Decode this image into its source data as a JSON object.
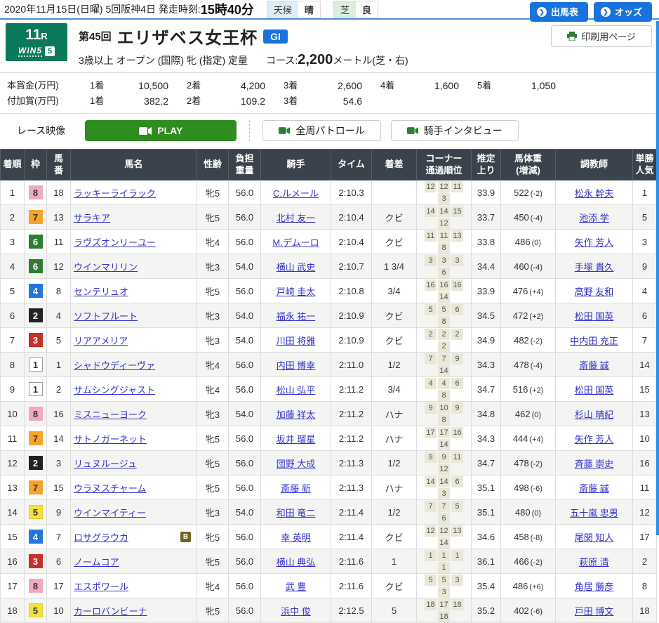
{
  "topbar": {
    "date_line": "2020年11月15日(日曜) 5回阪神4日 発走時刻:",
    "start_time": "15時40分",
    "weather_label": "天候",
    "weather_value": "晴",
    "turf_label": "芝",
    "turf_value": "良",
    "btn_racecard": "出馬表",
    "btn_odds": "オッズ",
    "btn_print": "印刷用ページ"
  },
  "race": {
    "race_no": "11",
    "race_no_suffix": "R",
    "win5_text": "WIN5",
    "win5_num": "5",
    "kai": "第45回",
    "name": "エリザベス女王杯",
    "grade": "GI",
    "conditions": "3歳以上 オープン (国際) 牝 (指定) 定量",
    "course_label": "コース:",
    "course_dist": "2,200",
    "course_suffix": "メートル(芝・右)"
  },
  "prize": {
    "main_label": "本賞金(万円)",
    "added_label": "付加賞(万円)",
    "main": [
      [
        "1着",
        "10,500"
      ],
      [
        "2着",
        "4,200"
      ],
      [
        "3着",
        "2,600"
      ],
      [
        "4着",
        "1,600"
      ],
      [
        "5着",
        "1,050"
      ]
    ],
    "added": [
      [
        "1着",
        "382.2"
      ],
      [
        "2着",
        "109.2"
      ],
      [
        "3着",
        "54.6"
      ]
    ]
  },
  "video": {
    "label": "レース映像",
    "play": "PLAY",
    "patrol": "全周パトロール",
    "interview": "騎手インタビュー"
  },
  "table": {
    "headers": [
      "着順",
      "枠",
      "馬\n番",
      "馬名",
      "性齢",
      "負担\n重量",
      "騎手",
      "タイム",
      "着差",
      "コーナー\n通過順位",
      "推定\n上り",
      "馬体重\n(増減)",
      "調教師",
      "単勝\n人気"
    ],
    "rows": [
      {
        "rank": "1",
        "frame": "8",
        "no": "18",
        "horse": "ラッキーライラック",
        "blinker": false,
        "sexage": "牝5",
        "weight": "56.0",
        "jockey": "C.ルメール",
        "time": "2:10.3",
        "margin": "",
        "corners": [
          "12",
          "12",
          "11",
          "3"
        ],
        "last3f": "33.9",
        "body": "522",
        "diff": "(-2)",
        "trainer": "松永 幹夫",
        "fav": "1"
      },
      {
        "rank": "2",
        "frame": "7",
        "no": "13",
        "horse": "サラキア",
        "blinker": false,
        "sexage": "牝5",
        "weight": "56.0",
        "jockey": "北村 友一",
        "time": "2:10.4",
        "margin": "クビ",
        "corners": [
          "14",
          "14",
          "15",
          "12"
        ],
        "last3f": "33.7",
        "body": "450",
        "diff": "(-4)",
        "trainer": "池添 学",
        "fav": "5"
      },
      {
        "rank": "3",
        "frame": "6",
        "no": "11",
        "horse": "ラヴズオンリーユー",
        "blinker": false,
        "sexage": "牝4",
        "weight": "56.0",
        "jockey": "M.デムーロ",
        "time": "2:10.4",
        "margin": "クビ",
        "corners": [
          "11",
          "11",
          "13",
          "8"
        ],
        "last3f": "33.8",
        "body": "486",
        "diff": "(0)",
        "trainer": "矢作 芳人",
        "fav": "3"
      },
      {
        "rank": "4",
        "frame": "6",
        "no": "12",
        "horse": "ウインマリリン",
        "blinker": false,
        "sexage": "牝3",
        "weight": "54.0",
        "jockey": "横山 武史",
        "time": "2:10.7",
        "margin": "1 3/4",
        "corners": [
          "3",
          "3",
          "3",
          "6"
        ],
        "last3f": "34.4",
        "body": "460",
        "diff": "(-4)",
        "trainer": "手塚 貴久",
        "fav": "9"
      },
      {
        "rank": "5",
        "frame": "4",
        "no": "8",
        "horse": "センテリュオ",
        "blinker": false,
        "sexage": "牝5",
        "weight": "56.0",
        "jockey": "戸崎 圭太",
        "time": "2:10.8",
        "margin": "3/4",
        "corners": [
          "16",
          "16",
          "16",
          "14"
        ],
        "last3f": "33.9",
        "body": "476",
        "diff": "(+4)",
        "trainer": "高野 友和",
        "fav": "4"
      },
      {
        "rank": "6",
        "frame": "2",
        "no": "4",
        "horse": "ソフトフルート",
        "blinker": false,
        "sexage": "牝3",
        "weight": "54.0",
        "jockey": "福永 祐一",
        "time": "2:10.9",
        "margin": "クビ",
        "corners": [
          "5",
          "5",
          "6",
          "8"
        ],
        "last3f": "34.5",
        "body": "472",
        "diff": "(+2)",
        "trainer": "松田 国英",
        "fav": "6"
      },
      {
        "rank": "7",
        "frame": "3",
        "no": "5",
        "horse": "リアアメリア",
        "blinker": false,
        "sexage": "牝3",
        "weight": "54.0",
        "jockey": "川田 将雅",
        "time": "2:10.9",
        "margin": "クビ",
        "corners": [
          "2",
          "2",
          "2",
          "2"
        ],
        "last3f": "34.9",
        "body": "482",
        "diff": "(-2)",
        "trainer": "中内田 充正",
        "fav": "7"
      },
      {
        "rank": "8",
        "frame": "1",
        "no": "1",
        "horse": "シャドウディーヴァ",
        "blinker": false,
        "sexage": "牝4",
        "weight": "56.0",
        "jockey": "内田 博幸",
        "time": "2:11.0",
        "margin": "1/2",
        "corners": [
          "7",
          "7",
          "9",
          "14"
        ],
        "last3f": "34.3",
        "body": "478",
        "diff": "(-4)",
        "trainer": "斎藤 誠",
        "fav": "14"
      },
      {
        "rank": "9",
        "frame": "1",
        "no": "2",
        "horse": "サムシングジャスト",
        "blinker": false,
        "sexage": "牝4",
        "weight": "56.0",
        "jockey": "松山 弘平",
        "time": "2:11.2",
        "margin": "3/4",
        "corners": [
          "4",
          "4",
          "6",
          "8"
        ],
        "last3f": "34.7",
        "body": "516",
        "diff": "(+2)",
        "trainer": "松田 国英",
        "fav": "15"
      },
      {
        "rank": "10",
        "frame": "8",
        "no": "16",
        "horse": "ミスニューヨーク",
        "blinker": false,
        "sexage": "牝3",
        "weight": "54.0",
        "jockey": "加藤 祥太",
        "time": "2:11.2",
        "margin": "ハナ",
        "corners": [
          "9",
          "10",
          "9",
          "8"
        ],
        "last3f": "34.8",
        "body": "462",
        "diff": "(0)",
        "trainer": "杉山 晴紀",
        "fav": "13"
      },
      {
        "rank": "11",
        "frame": "7",
        "no": "14",
        "horse": "サトノガーネット",
        "blinker": false,
        "sexage": "牝5",
        "weight": "56.0",
        "jockey": "坂井 瑠星",
        "time": "2:11.2",
        "margin": "ハナ",
        "corners": [
          "17",
          "17",
          "16",
          "14"
        ],
        "last3f": "34.3",
        "body": "444",
        "diff": "(+4)",
        "trainer": "矢作 芳人",
        "fav": "10"
      },
      {
        "rank": "12",
        "frame": "2",
        "no": "3",
        "horse": "リュヌルージュ",
        "blinker": false,
        "sexage": "牝5",
        "weight": "56.0",
        "jockey": "団野 大成",
        "time": "2:11.3",
        "margin": "1/2",
        "corners": [
          "9",
          "9",
          "11",
          "12"
        ],
        "last3f": "34.7",
        "body": "478",
        "diff": "(-2)",
        "trainer": "斉藤 崇史",
        "fav": "16"
      },
      {
        "rank": "13",
        "frame": "7",
        "no": "15",
        "horse": "ウラヌスチャーム",
        "blinker": false,
        "sexage": "牝5",
        "weight": "56.0",
        "jockey": "斎藤 新",
        "time": "2:11.3",
        "margin": "ハナ",
        "corners": [
          "14",
          "14",
          "6",
          "3"
        ],
        "last3f": "35.1",
        "body": "498",
        "diff": "(-6)",
        "trainer": "斎藤 誠",
        "fav": "11"
      },
      {
        "rank": "14",
        "frame": "5",
        "no": "9",
        "horse": "ウインマイティー",
        "blinker": false,
        "sexage": "牝3",
        "weight": "54.0",
        "jockey": "和田 竜二",
        "time": "2:11.4",
        "margin": "1/2",
        "corners": [
          "7",
          "7",
          "5",
          "6"
        ],
        "last3f": "35.1",
        "body": "480",
        "diff": "(0)",
        "trainer": "五十嵐 忠男",
        "fav": "12"
      },
      {
        "rank": "15",
        "frame": "4",
        "no": "7",
        "horse": "ロサグラウカ",
        "blinker": true,
        "blinker_label": "B",
        "sexage": "牝5",
        "weight": "56.0",
        "jockey": "幸 英明",
        "time": "2:11.4",
        "margin": "クビ",
        "corners": [
          "12",
          "12",
          "13",
          "14"
        ],
        "last3f": "34.6",
        "body": "458",
        "diff": "(-8)",
        "trainer": "尾関 知人",
        "fav": "17"
      },
      {
        "rank": "16",
        "frame": "3",
        "no": "6",
        "horse": "ノームコア",
        "blinker": false,
        "sexage": "牝5",
        "weight": "56.0",
        "jockey": "横山 典弘",
        "time": "2:11.6",
        "margin": "1",
        "corners": [
          "1",
          "1",
          "1",
          "1"
        ],
        "last3f": "36.1",
        "body": "466",
        "diff": "(-2)",
        "trainer": "萩原 清",
        "fav": "2"
      },
      {
        "rank": "17",
        "frame": "8",
        "no": "17",
        "horse": "エスポワール",
        "blinker": false,
        "sexage": "牝4",
        "weight": "56.0",
        "jockey": "武 豊",
        "time": "2:11.6",
        "margin": "クビ",
        "corners": [
          "5",
          "5",
          "3",
          "3"
        ],
        "last3f": "35.4",
        "body": "486",
        "diff": "(+6)",
        "trainer": "角居 勝彦",
        "fav": "8"
      },
      {
        "rank": "18",
        "frame": "5",
        "no": "10",
        "horse": "カーロバンビーナ",
        "blinker": false,
        "sexage": "牝5",
        "weight": "56.0",
        "jockey": "浜中 俊",
        "time": "2:12.5",
        "margin": "5",
        "corners": [
          "18",
          "17",
          "18",
          "18"
        ],
        "last3f": "35.2",
        "body": "402",
        "diff": "(-6)",
        "trainer": "戸田 博文",
        "fav": "18"
      }
    ]
  },
  "colors": {
    "accent_blue": "#1a73dc",
    "brand_green": "#0b7a5c",
    "play_green": "#2f8c1e",
    "link_blue": "#3333cc",
    "header_bg": "#3a424b",
    "frames": {
      "1": {
        "bg": "#ffffff",
        "fg": "#333333",
        "border": "#999999"
      },
      "2": {
        "bg": "#222222",
        "fg": "#ffffff",
        "border": "#222222"
      },
      "3": {
        "bg": "#c9302c",
        "fg": "#ffffff",
        "border": "#c9302c"
      },
      "4": {
        "bg": "#2176d9",
        "fg": "#ffffff",
        "border": "#2176d9"
      },
      "5": {
        "bg": "#f2e23c",
        "fg": "#333333",
        "border": "#e0d030"
      },
      "6": {
        "bg": "#2e7d33",
        "fg": "#ffffff",
        "border": "#2e7d33"
      },
      "7": {
        "bg": "#f5a32b",
        "fg": "#333333",
        "border": "#f5a32b"
      },
      "8": {
        "bg": "#f2a8c0",
        "fg": "#333333",
        "border": "#f2a8c0"
      }
    }
  }
}
